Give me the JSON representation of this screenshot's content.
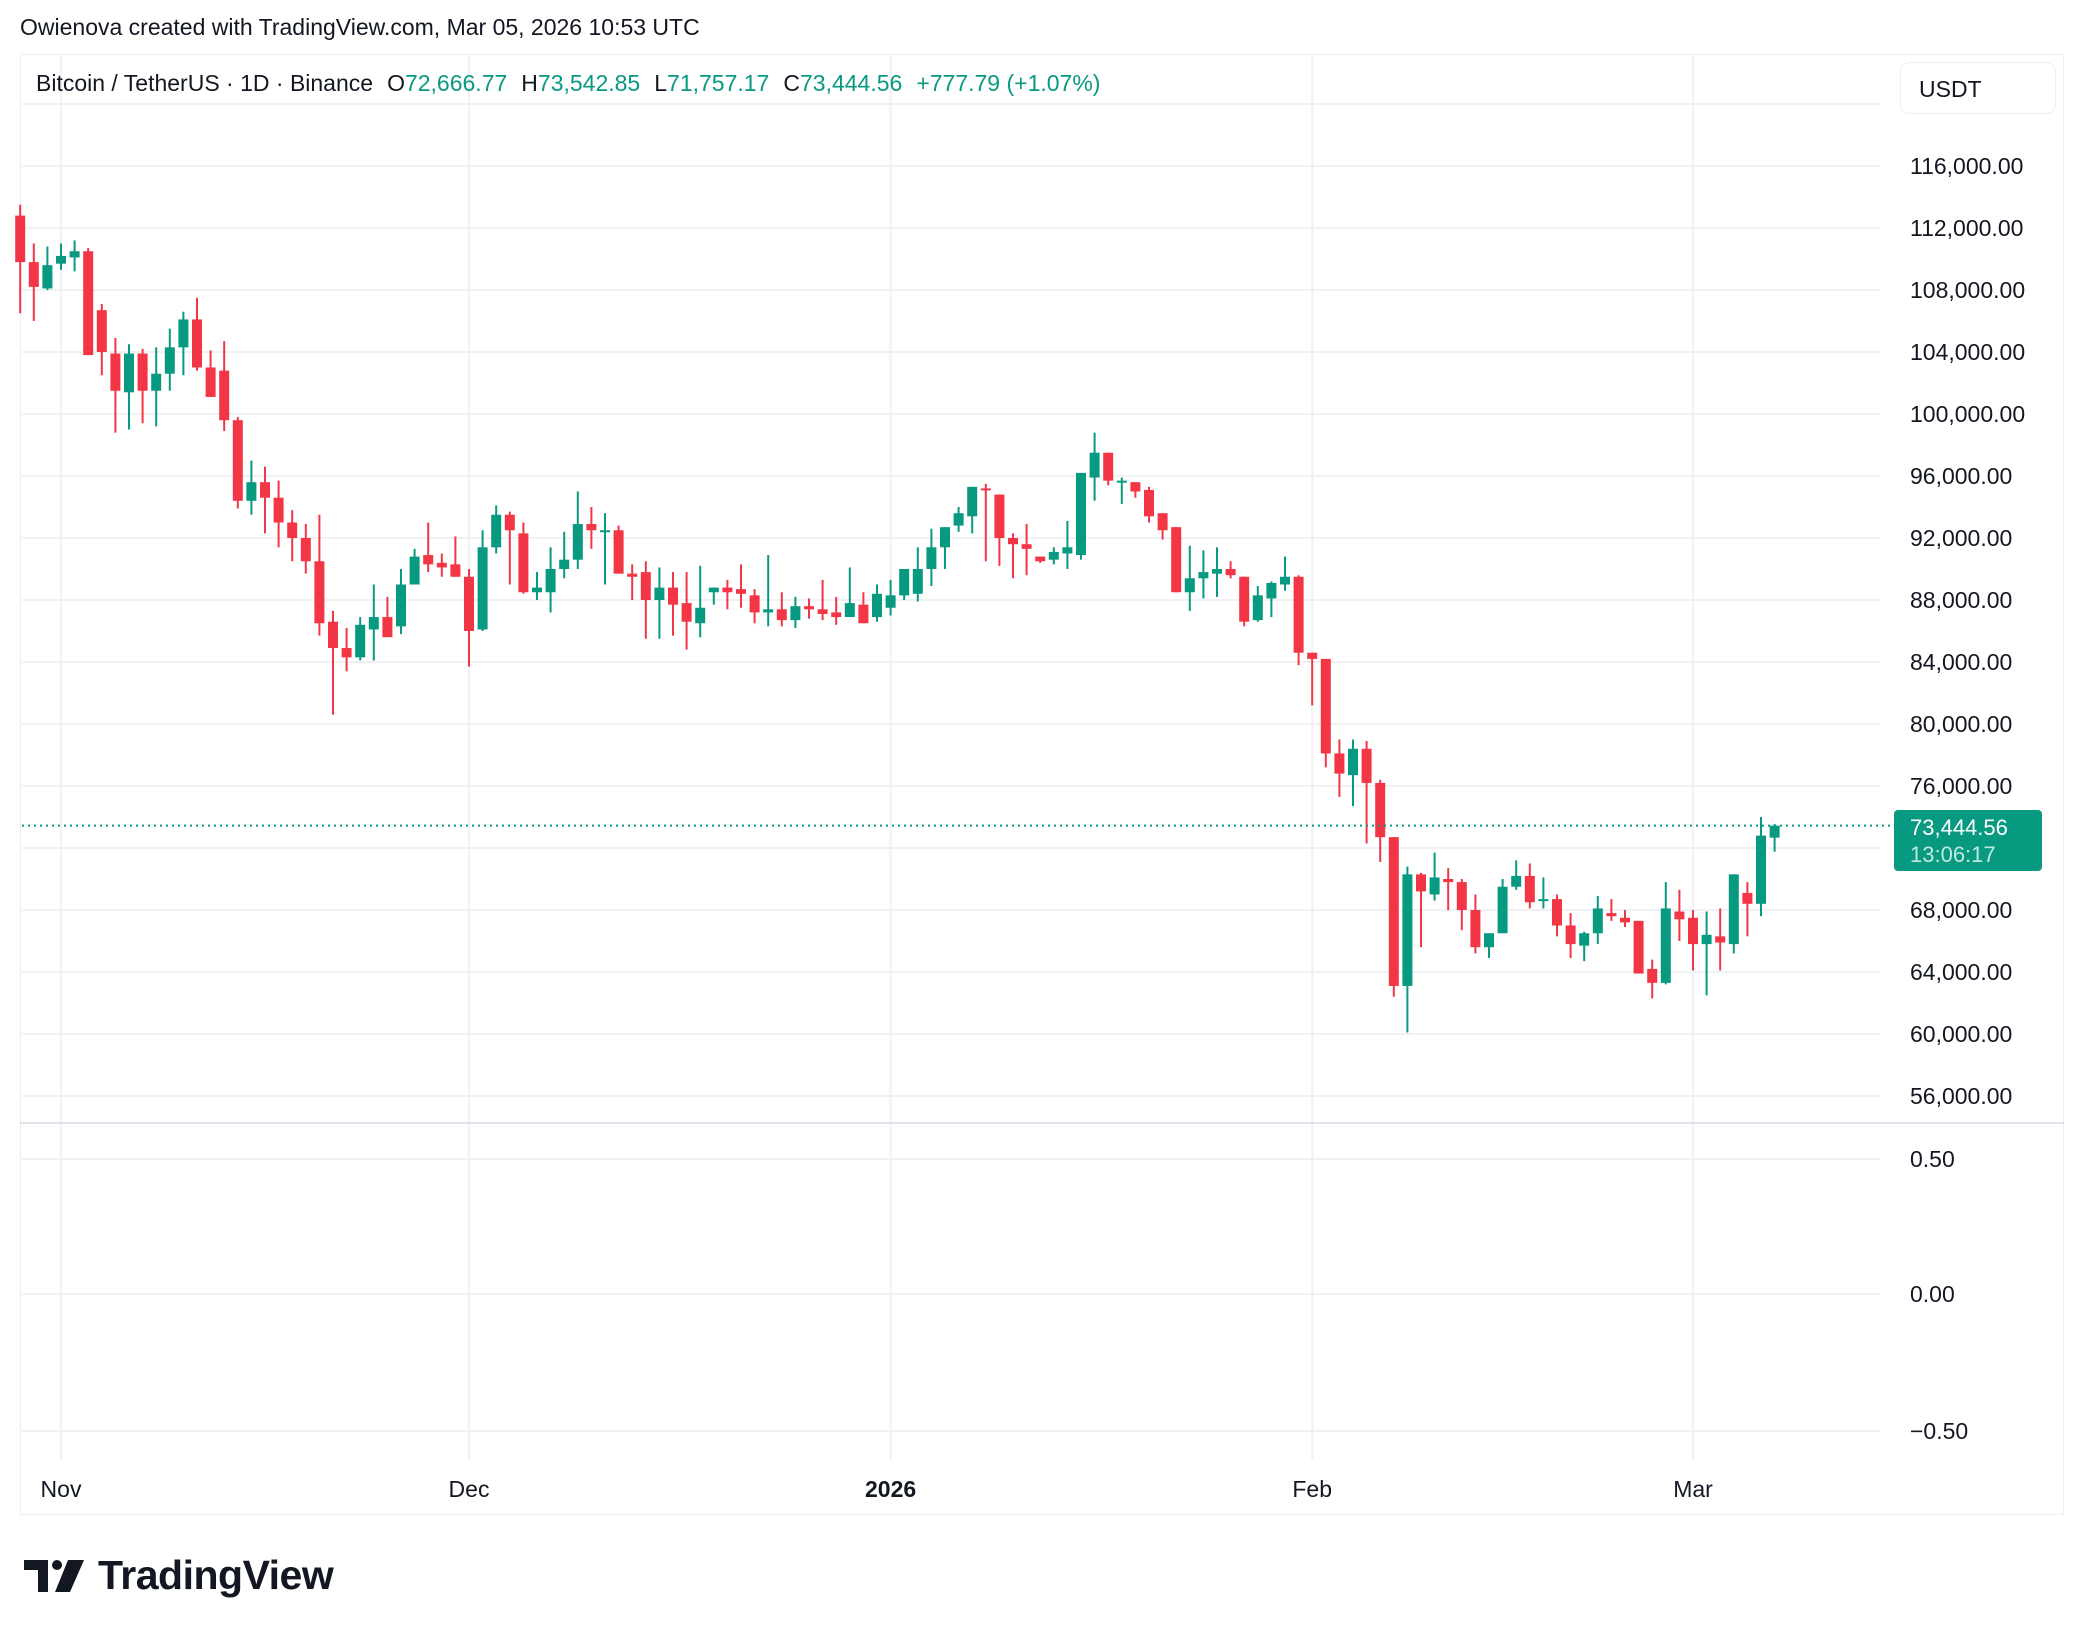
{
  "caption": "Owienova created with TradingView.com, Mar 05, 2026 10:53 UTC",
  "legend": {
    "symbol": "Bitcoin / TetherUS · 1D · Binance",
    "open_label": "O",
    "open": "72,666.77",
    "high_label": "H",
    "high": "73,542.85",
    "low_label": "L",
    "low": "71,757.17",
    "close_label": "C",
    "close": "73,444.56",
    "change": "+777.79 (+1.07%)"
  },
  "currency_button": "USDT",
  "last_price": {
    "value": "73,444.56",
    "countdown": "13:06:17"
  },
  "colors": {
    "up": "#089981",
    "down": "#F23645",
    "grid": "#f0f3fa",
    "text": "#131722"
  },
  "logo": {
    "text": "TradingView",
    "icon": "tradingview-logo-icon"
  },
  "chart_data": {
    "type": "candlestick",
    "title": "Bitcoin / TetherUS · 1D · Binance",
    "xlabel": "",
    "ylabel": "USDT",
    "x_tick_labels": [
      {
        "label": "Nov",
        "day": 0,
        "bold": false
      },
      {
        "label": "Dec",
        "day": 30,
        "bold": false
      },
      {
        "label": "2026",
        "day": 61,
        "bold": true
      },
      {
        "label": "Feb",
        "day": 92,
        "bold": false
      },
      {
        "label": "Mar",
        "day": 120,
        "bold": false
      }
    ],
    "y_ticks": [
      116000,
      112000,
      108000,
      104000,
      100000,
      96000,
      92000,
      88000,
      84000,
      80000,
      76000,
      68000,
      64000,
      60000,
      56000
    ],
    "y_tick_labels": [
      "116,000.00",
      "112,000.00",
      "108,000.00",
      "104,000.00",
      "100,000.00",
      "96,000.00",
      "92,000.00",
      "88,000.00",
      "84,000.00",
      "80,000.00",
      "76,000.00",
      "68,000.00",
      "64,000.00",
      "60,000.00",
      "56,000.00"
    ],
    "ylim": [
      54500,
      122000
    ],
    "grid": true,
    "first_day_offset": -3,
    "ohlc": [
      [
        112800,
        113500,
        106500,
        109800
      ],
      [
        109800,
        111000,
        106000,
        108200
      ],
      [
        108100,
        110800,
        108000,
        109600
      ],
      [
        109700,
        111000,
        109300,
        110200
      ],
      [
        110100,
        111200,
        109200,
        110500
      ],
      [
        110500,
        110700,
        104600,
        103800
      ],
      [
        106700,
        107100,
        102500,
        104000
      ],
      [
        103900,
        104900,
        98800,
        101500
      ],
      [
        101400,
        104500,
        99000,
        103900
      ],
      [
        103900,
        104200,
        99400,
        101500
      ],
      [
        101500,
        104300,
        99200,
        102600
      ],
      [
        102600,
        105500,
        101500,
        104300
      ],
      [
        104300,
        106600,
        102500,
        106100
      ],
      [
        106100,
        107500,
        102800,
        103000
      ],
      [
        103000,
        104100,
        101400,
        101100
      ],
      [
        102800,
        104700,
        98900,
        99600
      ],
      [
        99600,
        99800,
        93900,
        94400
      ],
      [
        94400,
        97000,
        93500,
        95600
      ],
      [
        95600,
        96600,
        92300,
        94600
      ],
      [
        94600,
        95700,
        91400,
        93000
      ],
      [
        93000,
        93800,
        90500,
        92000
      ],
      [
        92000,
        92900,
        89700,
        90500
      ],
      [
        90500,
        93500,
        85700,
        86500
      ],
      [
        86600,
        87300,
        80600,
        84900
      ],
      [
        84900,
        86200,
        83400,
        84300
      ],
      [
        84300,
        86900,
        84100,
        86400
      ],
      [
        86100,
        89000,
        84100,
        86900
      ],
      [
        86900,
        88200,
        86400,
        85600
      ],
      [
        86300,
        90000,
        85800,
        89000
      ],
      [
        89000,
        91300,
        89700,
        90800
      ],
      [
        90900,
        93000,
        89800,
        90300
      ],
      [
        90400,
        91000,
        89500,
        90100
      ],
      [
        90300,
        92100,
        89500,
        89500
      ],
      [
        89500,
        90000,
        83700,
        86000
      ],
      [
        86100,
        92500,
        86000,
        91400
      ],
      [
        91400,
        94100,
        91000,
        93500
      ],
      [
        93500,
        93700,
        89000,
        92500
      ],
      [
        92300,
        93000,
        88400,
        88500
      ],
      [
        88500,
        89800,
        88000,
        88800
      ],
      [
        88500,
        91400,
        87200,
        90000
      ],
      [
        90000,
        92400,
        89400,
        90600
      ],
      [
        90600,
        95000,
        90000,
        92900
      ],
      [
        92900,
        94000,
        91300,
        92500
      ],
      [
        92400,
        93600,
        89000,
        92500
      ],
      [
        92500,
        92800,
        89700,
        89700
      ],
      [
        89700,
        90300,
        88000,
        89500
      ],
      [
        89800,
        90500,
        85500,
        88000
      ],
      [
        88000,
        90100,
        85500,
        88800
      ],
      [
        88800,
        89800,
        85700,
        87700
      ],
      [
        87800,
        89800,
        84800,
        86600
      ],
      [
        86500,
        90200,
        85600,
        87500
      ],
      [
        88500,
        88500,
        87700,
        88800
      ],
      [
        88800,
        89300,
        87400,
        88500
      ],
      [
        88700,
        90300,
        87500,
        88400
      ],
      [
        88300,
        88700,
        86500,
        87200
      ],
      [
        87200,
        90900,
        86300,
        87400
      ],
      [
        87400,
        88500,
        86300,
        86700
      ],
      [
        86700,
        88200,
        86200,
        87600
      ],
      [
        87600,
        88100,
        86800,
        87400
      ],
      [
        87400,
        89300,
        86700,
        87100
      ],
      [
        87200,
        88200,
        86400,
        86900
      ],
      [
        86900,
        90100,
        86900,
        87800
      ],
      [
        87700,
        88500,
        86700,
        86500
      ],
      [
        86900,
        89000,
        86600,
        88400
      ],
      [
        87500,
        89300,
        87000,
        88300
      ],
      [
        88300,
        89100,
        88000,
        90000
      ],
      [
        88400,
        91400,
        87900,
        90000
      ],
      [
        90000,
        92600,
        88900,
        91400
      ],
      [
        91400,
        92200,
        90000,
        92700
      ],
      [
        92800,
        94000,
        92400,
        93600
      ],
      [
        93400,
        95300,
        92300,
        95300
      ],
      [
        95200,
        95500,
        90500,
        95100
      ],
      [
        94800,
        94800,
        90200,
        92000
      ],
      [
        92000,
        92300,
        89400,
        91600
      ],
      [
        91600,
        92900,
        89600,
        91300
      ],
      [
        90800,
        90600,
        90400,
        90500
      ],
      [
        90600,
        91400,
        90300,
        91100
      ],
      [
        91000,
        93100,
        90000,
        91400
      ],
      [
        90900,
        96000,
        90600,
        96200
      ],
      [
        95900,
        98800,
        94400,
        97500
      ],
      [
        97500,
        97500,
        95400,
        95700
      ],
      [
        95700,
        95900,
        94200,
        95700
      ],
      [
        95600,
        95600,
        94600,
        95000
      ],
      [
        95100,
        95300,
        93000,
        93400
      ],
      [
        93600,
        93500,
        91900,
        92500
      ],
      [
        92700,
        92700,
        88500,
        88500
      ],
      [
        88500,
        91500,
        87300,
        89400
      ],
      [
        89400,
        91200,
        88100,
        89800
      ],
      [
        89700,
        91400,
        88200,
        90000
      ],
      [
        90000,
        90500,
        89400,
        89600
      ],
      [
        89500,
        89500,
        86300,
        86600
      ],
      [
        86700,
        88900,
        86600,
        88300
      ],
      [
        88100,
        89200,
        86900,
        89100
      ],
      [
        89000,
        90800,
        88600,
        89500
      ],
      [
        89500,
        89600,
        83800,
        84600
      ],
      [
        84600,
        84600,
        81200,
        84200
      ],
      [
        84200,
        84200,
        77200,
        78100
      ],
      [
        78100,
        79000,
        75300,
        76800
      ],
      [
        76700,
        79000,
        74700,
        78400
      ],
      [
        78400,
        78900,
        72300,
        76200
      ],
      [
        76200,
        76400,
        71100,
        72700
      ],
      [
        72700,
        72600,
        62400,
        63100
      ],
      [
        63100,
        70800,
        60100,
        70300
      ],
      [
        70300,
        70400,
        65600,
        69200
      ],
      [
        69000,
        71700,
        68600,
        70100
      ],
      [
        70000,
        70700,
        68000,
        69800
      ],
      [
        69800,
        70000,
        66700,
        68000
      ],
      [
        68000,
        69000,
        65200,
        65600
      ],
      [
        65600,
        66500,
        64900,
        66500
      ],
      [
        66500,
        70000,
        66800,
        69500
      ],
      [
        69500,
        71200,
        69300,
        70200
      ],
      [
        70200,
        71000,
        68100,
        68500
      ],
      [
        68600,
        70100,
        68100,
        68700
      ],
      [
        68700,
        69000,
        66300,
        67000
      ],
      [
        67000,
        67800,
        64900,
        65800
      ],
      [
        65700,
        66600,
        64700,
        66500
      ],
      [
        66500,
        68900,
        65800,
        68100
      ],
      [
        67800,
        68700,
        67300,
        67600
      ],
      [
        67500,
        68000,
        66900,
        67200
      ],
      [
        67300,
        67200,
        64300,
        63900
      ],
      [
        64200,
        64800,
        62300,
        63300
      ],
      [
        63300,
        69800,
        63200,
        68100
      ],
      [
        67900,
        69300,
        66000,
        67400
      ],
      [
        67500,
        68000,
        64100,
        65800
      ],
      [
        65800,
        67900,
        62500,
        66400
      ],
      [
        66300,
        68100,
        64100,
        65900
      ],
      [
        65800,
        70200,
        65200,
        70300
      ],
      [
        69100,
        69800,
        66300,
        68400
      ],
      [
        68400,
        74000,
        67600,
        72800
      ],
      [
        72666.77,
        73542.85,
        71757.17,
        73444.56
      ]
    ],
    "current_price": 73444.56,
    "indicator_pane": {
      "y_ticks": [
        0.5,
        0.0,
        -0.5
      ],
      "y_tick_labels": [
        "0.50",
        "0.00",
        "−0.50"
      ]
    }
  }
}
